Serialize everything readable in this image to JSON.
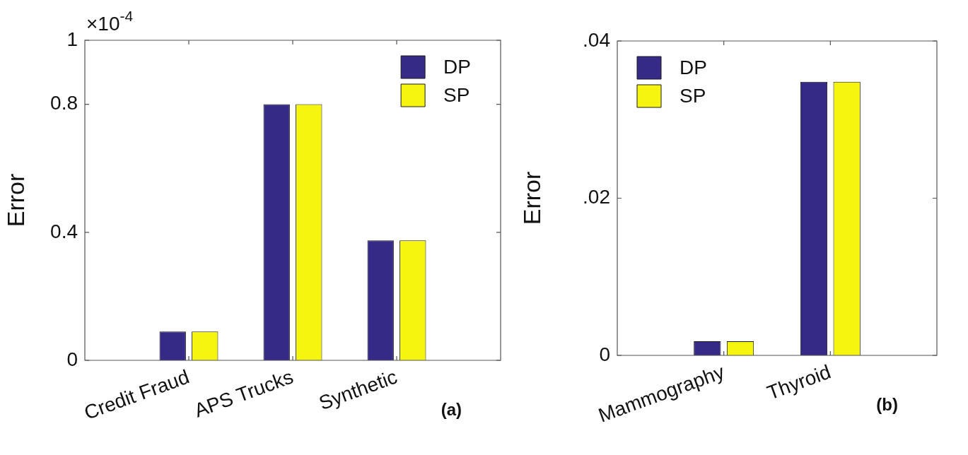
{
  "chart_data": [
    {
      "type": "bar",
      "ylabel": "Error",
      "categories": [
        "Credit Fraud",
        "APS Trucks",
        "Synthetic"
      ],
      "series": [
        {
          "name": "DP",
          "color": "#352a85",
          "values": [
            0.09,
            0.8,
            0.375
          ]
        },
        {
          "name": "SP",
          "color": "#f5f50f",
          "values": [
            0.09,
            0.8,
            0.375
          ]
        }
      ],
      "ylim": [
        0,
        1
      ],
      "yticks": [
        0,
        0.4,
        0.8,
        1
      ],
      "grid": false,
      "legend": "top right",
      "annotations": [
        "×10$^{-4}$",
        "(a)"
      ]
    },
    {
      "type": "bar",
      "ylabel": "Error",
      "categories": [
        "Mammography",
        "Thyroid"
      ],
      "series": [
        {
          "name": "DP",
          "color": "#352a85",
          "values": [
            0.0018,
            0.0348
          ]
        },
        {
          "name": "SP",
          "color": "#f5f50f",
          "values": [
            0.0018,
            0.0348
          ]
        }
      ],
      "ylim": [
        0,
        0.04
      ],
      "yticks": [
        0,
        {
          "value": 0.02,
          "label": ".02"
        },
        {
          "value": 0.04,
          "label": ".04"
        }
      ],
      "grid": false,
      "legend": "top left",
      "annotations": [
        "(b)"
      ]
    }
  ]
}
